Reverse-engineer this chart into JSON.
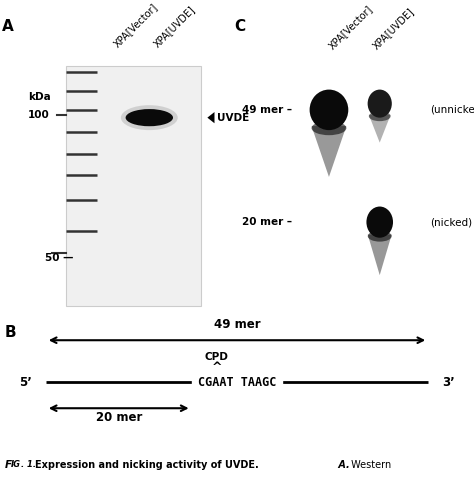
{
  "panel_A_label": "A",
  "panel_B_label": "B",
  "panel_C_label": "C",
  "kda_label": "kDa",
  "kda_100": "100",
  "kda_50": "50 —",
  "col1_label": "XPA[Vector]",
  "col2_label": "XPA[UVDE]",
  "uvde_label": "UVDE",
  "mer49_label": "49 mer –",
  "mer20_label": "20 mer –",
  "unnicked_label": "(unnicked)",
  "nicked_label": "(nicked)",
  "caption": "Fig. 1.  Expression and nicking activity of UVDE.  A.  Western",
  "cpd_label": "CPD",
  "mer49_text": "49 mer",
  "mer20_text": "20 mer",
  "prime5": "5’",
  "prime3": "3’",
  "seq_text": "CGAAT TAAGC",
  "caret": "^",
  "fig_prefix": "F",
  "fig_rest": "IG. 1."
}
